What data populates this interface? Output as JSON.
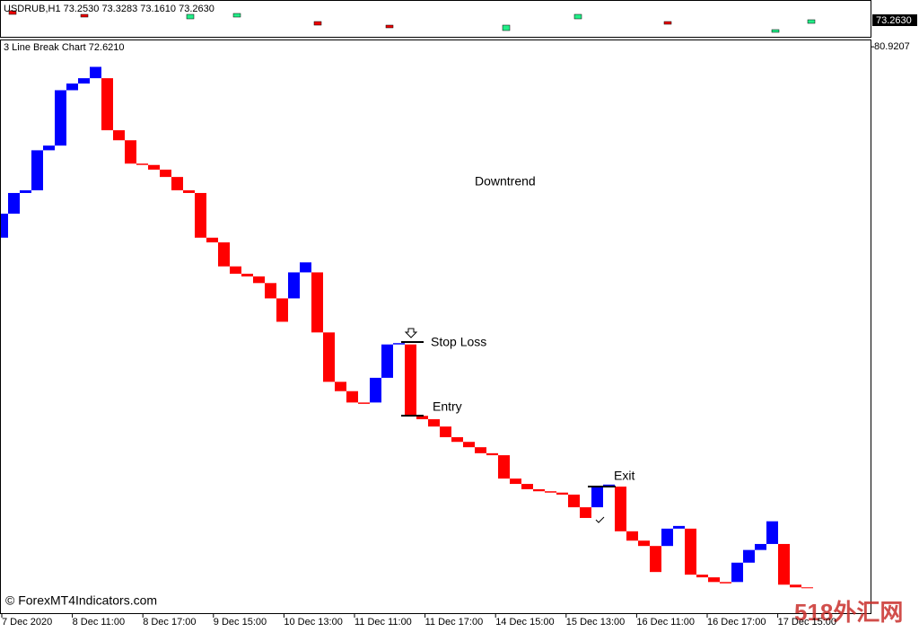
{
  "chart_data": {
    "type": "line_break",
    "header": "USDRUB,H1  73.2530 73.3283 73.1610 73.2630",
    "current_price_label": "73.2630",
    "title": "3 Line Break Chart 72.6210",
    "annotations": {
      "trend": "Downtrend",
      "stop_loss": "Stop Loss",
      "entry": "Entry",
      "exit": "Exit"
    },
    "copyright": "© ForexMT4Indicators.com",
    "watermark": "518外汇网",
    "up_color": "#0000ff",
    "down_color": "#ff0000",
    "ylim": [
      72.42,
      81.03
    ],
    "yticks": [
      80.9207
    ],
    "categories": [
      "7 Dec 2020",
      "8 Dec 11:00",
      "8 Dec 17:00",
      "9 Dec 15:00",
      "10 Dec 13:00",
      "11 Dec 11:00",
      "11 Dec 17:00",
      "14 Dec 15:00",
      "15 Dec 13:00",
      "16 Dec 11:00",
      "16 Dec 17:00",
      "17 Dec 15:00"
    ],
    "bricks": [
      {
        "open": 78.06,
        "close": 78.42
      },
      {
        "open": 78.42,
        "close": 78.73
      },
      {
        "open": 78.73,
        "close": 78.77
      },
      {
        "open": 78.77,
        "close": 79.37
      },
      {
        "open": 79.37,
        "close": 79.44
      },
      {
        "open": 79.44,
        "close": 80.27
      },
      {
        "open": 80.27,
        "close": 80.37
      },
      {
        "open": 80.37,
        "close": 80.45
      },
      {
        "open": 80.45,
        "close": 80.62
      },
      {
        "open": 80.45,
        "close": 79.67
      },
      {
        "open": 79.67,
        "close": 79.52
      },
      {
        "open": 79.52,
        "close": 79.17
      },
      {
        "open": 79.17,
        "close": 79.15
      },
      {
        "open": 79.15,
        "close": 79.08
      },
      {
        "open": 79.08,
        "close": 78.97
      },
      {
        "open": 78.97,
        "close": 78.77
      },
      {
        "open": 78.77,
        "close": 78.73
      },
      {
        "open": 78.73,
        "close": 78.06
      },
      {
        "open": 78.06,
        "close": 77.99
      },
      {
        "open": 77.99,
        "close": 77.63
      },
      {
        "open": 77.63,
        "close": 77.52
      },
      {
        "open": 77.52,
        "close": 77.48
      },
      {
        "open": 77.48,
        "close": 77.38
      },
      {
        "open": 77.38,
        "close": 77.15
      },
      {
        "open": 77.15,
        "close": 76.8
      },
      {
        "open": 77.15,
        "close": 77.54
      },
      {
        "open": 77.54,
        "close": 77.69
      },
      {
        "open": 77.54,
        "close": 76.64
      },
      {
        "open": 76.64,
        "close": 75.9
      },
      {
        "open": 75.9,
        "close": 75.76
      },
      {
        "open": 75.76,
        "close": 75.59
      },
      {
        "open": 75.59,
        "close": 75.57
      },
      {
        "open": 75.59,
        "close": 75.96
      },
      {
        "open": 75.96,
        "close": 76.46
      },
      {
        "open": 76.46,
        "close": 76.48
      },
      {
        "open": 76.46,
        "close": 75.39
      },
      {
        "open": 75.39,
        "close": 75.34
      },
      {
        "open": 75.34,
        "close": 75.23
      },
      {
        "open": 75.23,
        "close": 75.07
      },
      {
        "open": 75.07,
        "close": 75.0
      },
      {
        "open": 75.0,
        "close": 74.92
      },
      {
        "open": 74.92,
        "close": 74.83
      },
      {
        "open": 74.83,
        "close": 74.8
      },
      {
        "open": 74.8,
        "close": 74.45
      },
      {
        "open": 74.45,
        "close": 74.37
      },
      {
        "open": 74.37,
        "close": 74.29
      },
      {
        "open": 74.29,
        "close": 74.26
      },
      {
        "open": 74.26,
        "close": 74.24
      },
      {
        "open": 74.24,
        "close": 74.21
      },
      {
        "open": 74.21,
        "close": 74.02
      },
      {
        "open": 74.02,
        "close": 73.86
      },
      {
        "open": 74.02,
        "close": 74.33
      },
      {
        "open": 74.33,
        "close": 74.36
      },
      {
        "open": 74.33,
        "close": 73.66
      },
      {
        "open": 73.66,
        "close": 73.52
      },
      {
        "open": 73.52,
        "close": 73.44
      },
      {
        "open": 73.44,
        "close": 73.05
      },
      {
        "open": 73.44,
        "close": 73.7
      },
      {
        "open": 73.7,
        "close": 73.74
      },
      {
        "open": 73.7,
        "close": 73.01
      },
      {
        "open": 73.01,
        "close": 72.97
      },
      {
        "open": 72.97,
        "close": 72.9
      },
      {
        "open": 72.9,
        "close": 72.88
      },
      {
        "open": 72.9,
        "close": 73.19
      },
      {
        "open": 73.19,
        "close": 73.38
      },
      {
        "open": 73.38,
        "close": 73.47
      },
      {
        "open": 73.47,
        "close": 73.81
      },
      {
        "open": 73.47,
        "close": 72.86
      },
      {
        "open": 72.86,
        "close": 72.82
      },
      {
        "open": 72.82,
        "close": 72.81
      }
    ]
  }
}
